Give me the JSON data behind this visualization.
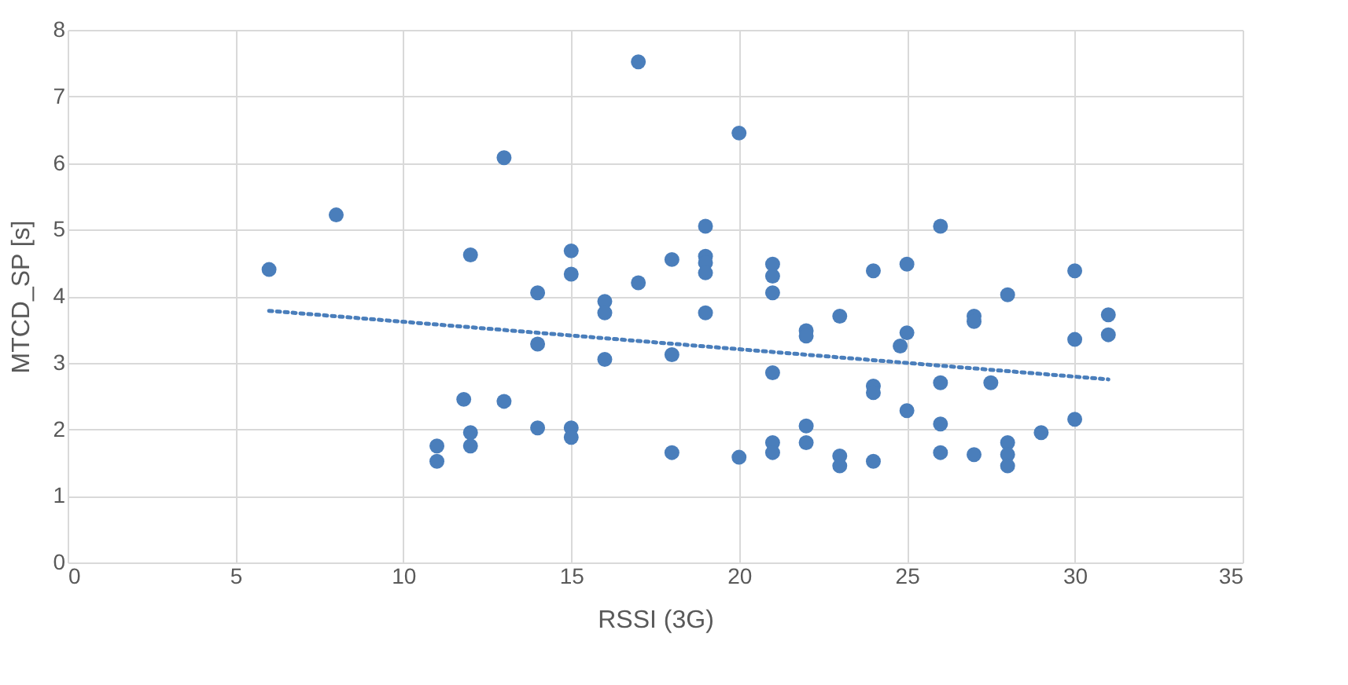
{
  "chart_data": {
    "type": "scatter",
    "xlabel": "RSSI (3G)",
    "ylabel": "MTCD_SP [s]",
    "xlim": [
      0,
      35
    ],
    "xticks": [
      0,
      5,
      10,
      15,
      20,
      25,
      30,
      35
    ],
    "ylim": [
      0,
      8
    ],
    "yticks": [
      0,
      1,
      2,
      3,
      4,
      5,
      6,
      7,
      8
    ],
    "grid": true,
    "series": [
      {
        "color": "#4a7ebb",
        "marker": "circle",
        "x": [
          6,
          8,
          11,
          11,
          12,
          12,
          12,
          11.8,
          13,
          13,
          14,
          14,
          14,
          15,
          15,
          15,
          15,
          16,
          16,
          16,
          17,
          17,
          18,
          18,
          18,
          19,
          19,
          19,
          19,
          19,
          20,
          20,
          21,
          21,
          21,
          21,
          21,
          21,
          22,
          22,
          22,
          22,
          23,
          23,
          23,
          24,
          24,
          24,
          24,
          24.8,
          25,
          25,
          25,
          26,
          26,
          26,
          26,
          27,
          27,
          27,
          27.5,
          28,
          28,
          28,
          28,
          29,
          30,
          30,
          30,
          31,
          31
        ],
        "values": [
          4.4,
          5.22,
          1.52,
          1.75,
          4.62,
          1.95,
          1.75,
          2.45,
          6.08,
          2.42,
          4.05,
          3.28,
          2.02,
          4.68,
          4.33,
          2.02,
          1.88,
          3.92,
          3.75,
          3.05,
          7.52,
          4.2,
          4.55,
          3.12,
          1.65,
          5.05,
          4.6,
          4.5,
          4.35,
          3.75,
          6.45,
          1.58,
          4.48,
          4.3,
          4.05,
          2.85,
          1.8,
          1.65,
          3.48,
          3.4,
          2.05,
          1.8,
          3.7,
          1.6,
          1.45,
          4.38,
          2.65,
          2.55,
          1.52,
          3.25,
          3.45,
          4.48,
          2.28,
          5.05,
          2.7,
          2.08,
          1.65,
          3.7,
          3.62,
          1.62,
          2.7,
          4.02,
          1.8,
          1.62,
          1.45,
          1.95,
          4.38,
          3.35,
          2.15,
          3.72,
          3.42
        ]
      },
      {
        "type": "line",
        "color": "#4a7ebb",
        "line_style": "dotted",
        "marker": "none",
        "x": [
          6,
          31
        ],
        "values": [
          3.78,
          2.75
        ]
      }
    ]
  }
}
